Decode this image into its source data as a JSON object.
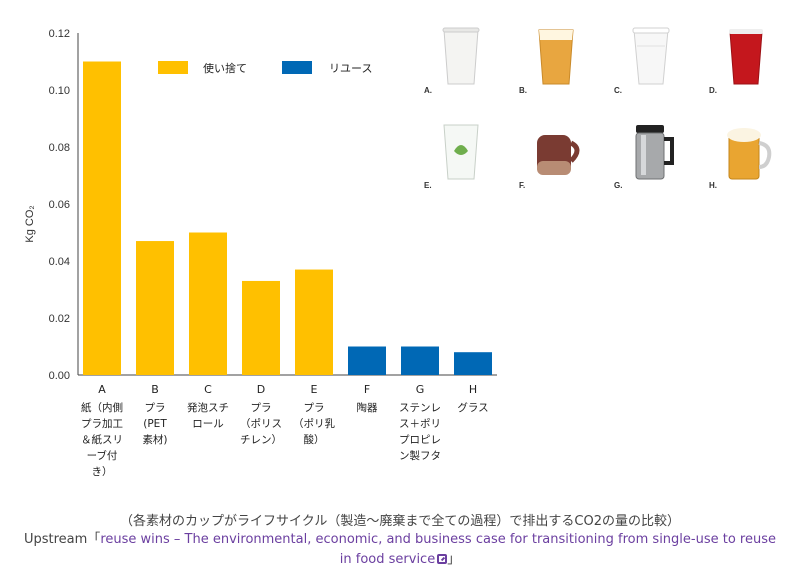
{
  "chart_data": {
    "type": "bar",
    "ylabel": "Kg CO₂",
    "ylim": [
      0,
      0.12
    ],
    "yticks": [
      "0.00",
      "0.02",
      "0.04",
      "0.06",
      "0.08",
      "0.10",
      "0.12"
    ],
    "grid": false,
    "legend_position": "top-center",
    "series": [
      {
        "name": "使い捨て",
        "color": "#FFC000"
      },
      {
        "name": "リユース",
        "color": "#0068B5"
      }
    ],
    "categories": [
      {
        "letter": "A",
        "lines": [
          "紙（内側",
          "プラ加工",
          "＆紙スリ",
          "ーブ付",
          "き）"
        ],
        "value": 0.11,
        "series": 0
      },
      {
        "letter": "B",
        "lines": [
          "プラ",
          "(PET",
          "素材)"
        ],
        "value": 0.047,
        "series": 0
      },
      {
        "letter": "C",
        "lines": [
          "発泡スチ",
          "ロール"
        ],
        "value": 0.05,
        "series": 0
      },
      {
        "letter": "D",
        "lines": [
          "プラ",
          "（ポリス",
          "チレン）"
        ],
        "value": 0.033,
        "series": 0
      },
      {
        "letter": "E",
        "lines": [
          "プラ",
          "（ポリ乳",
          "酸）"
        ],
        "value": 0.037,
        "series": 0
      },
      {
        "letter": "F",
        "lines": [
          "陶器"
        ],
        "value": 0.01,
        "series": 1
      },
      {
        "letter": "G",
        "lines": [
          "ステンレ",
          "ス＋ポリ",
          "プロピレ",
          "ン製フタ"
        ],
        "value": 0.01,
        "series": 1
      },
      {
        "letter": "H",
        "lines": [
          "グラス"
        ],
        "value": 0.008,
        "series": 1
      }
    ]
  },
  "thumbnails": [
    {
      "label": "A.",
      "icon": "paper-cup-icon"
    },
    {
      "label": "B.",
      "icon": "plastic-cup-beer-icon"
    },
    {
      "label": "C.",
      "icon": "foam-cup-icon"
    },
    {
      "label": "D.",
      "icon": "red-party-cup-icon"
    },
    {
      "label": "E.",
      "icon": "pla-cup-leaf-icon"
    },
    {
      "label": "F.",
      "icon": "ceramic-mug-icon"
    },
    {
      "label": "G.",
      "icon": "steel-travel-mug-icon"
    },
    {
      "label": "H.",
      "icon": "beer-glass-mug-icon"
    }
  ],
  "caption": "（各素材のカップがライフサイクル（製造～廃棄まで全ての過程）で排出するCO2の量の比較）",
  "source": {
    "prefix": "Upstream「",
    "link_text": "reuse wins – The environmental, economic, and business case for transitioning from single-use to reuse in food service",
    "suffix": "」"
  }
}
